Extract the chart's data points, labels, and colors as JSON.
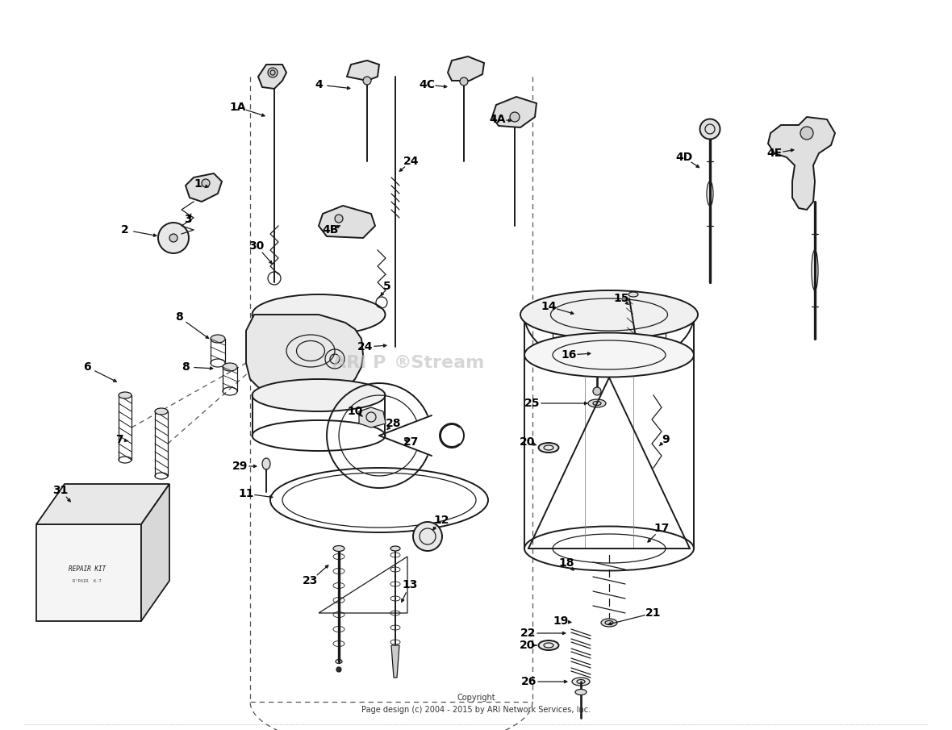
{
  "background_color": "#ffffff",
  "line_color": "#1a1a1a",
  "text_color": "#000000",
  "watermark": "ARI P",
  "watermark2": "Stream",
  "copyright": "Copyright\nPage design (c) 2004 - 2015 by ARI Network Services, Inc.",
  "figsize": [
    11.8,
    9.05
  ],
  "dpi": 100,
  "lw_main": 1.4,
  "lw_thin": 0.9
}
